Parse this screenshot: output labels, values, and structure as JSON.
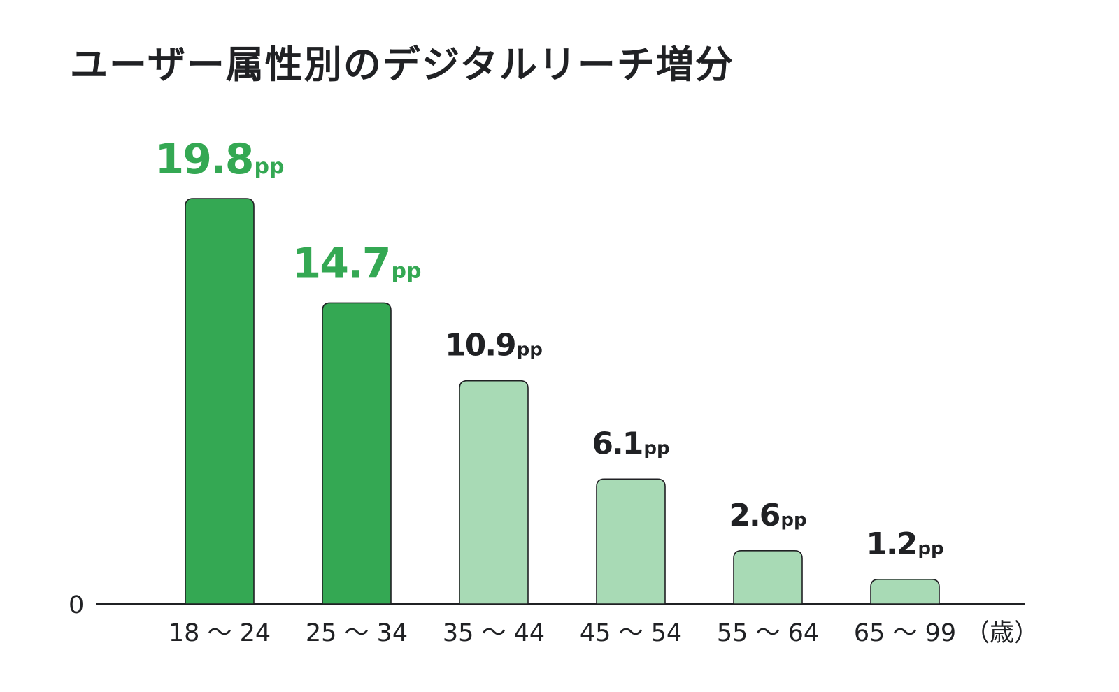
{
  "chart_data": {
    "type": "bar",
    "title": "ユーザー属性別のデジタルリーチ増分",
    "categories": [
      "18 〜 24",
      "25 〜 34",
      "35 〜 44",
      "45 〜 54",
      "55 〜 64",
      "65 〜 99"
    ],
    "values": [
      19.8,
      14.7,
      10.9,
      6.1,
      2.6,
      1.2
    ],
    "value_labels": [
      "19.8",
      "14.7",
      "10.9",
      "6.1",
      "2.6",
      "1.2"
    ],
    "value_unit": "pp",
    "highlighted": [
      true,
      true,
      false,
      false,
      false,
      false
    ],
    "x_unit_label": "（歳）",
    "y_zero_label": "0",
    "ylim": [
      0,
      20
    ],
    "grid": false,
    "legend": "none",
    "colors": {
      "highlight_bar": "#34a853",
      "normal_bar": "#a8dab5",
      "highlight_label": "#34a853",
      "normal_label": "#202124",
      "bar_outline": "#202124",
      "axis": "#202124"
    }
  }
}
